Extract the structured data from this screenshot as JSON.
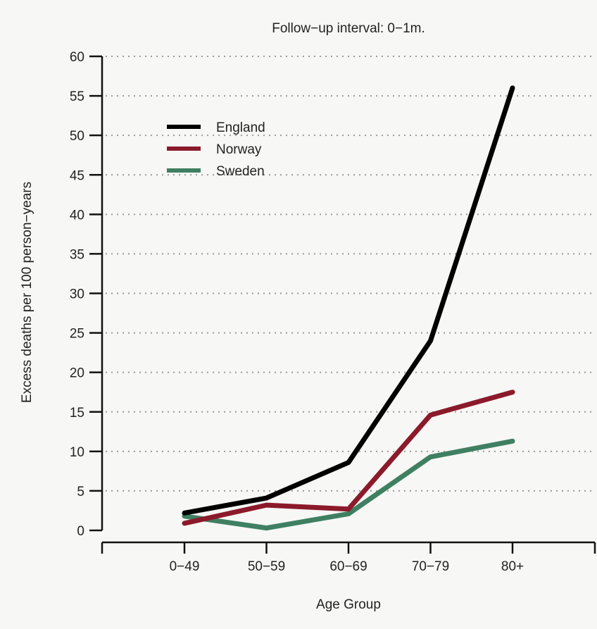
{
  "chart_data": {
    "type": "line",
    "title": "Follow−up interval: 0−1m.",
    "xlabel": "Age Group",
    "ylabel": "Excess deaths per 100 person−years",
    "categories": [
      "0−49",
      "50−59",
      "60−69",
      "70−79",
      "80+"
    ],
    "ylim": [
      0,
      60
    ],
    "yticks": [
      "0",
      "5",
      "10",
      "15",
      "20",
      "25",
      "30",
      "35",
      "40",
      "45",
      "50",
      "55",
      "60"
    ],
    "grid": "horizontal dotted",
    "legend_position": "top-left",
    "series": [
      {
        "name": "England",
        "color": "#000000",
        "values": [
          2.2,
          4.1,
          8.6,
          24.0,
          56.0
        ]
      },
      {
        "name": "Norway",
        "color": "#8b1a2b",
        "values": [
          0.9,
          3.2,
          2.7,
          14.6,
          17.5
        ]
      },
      {
        "name": "Sweden",
        "color": "#3f7f62",
        "values": [
          1.8,
          0.3,
          2.1,
          9.3,
          11.3
        ]
      }
    ]
  }
}
